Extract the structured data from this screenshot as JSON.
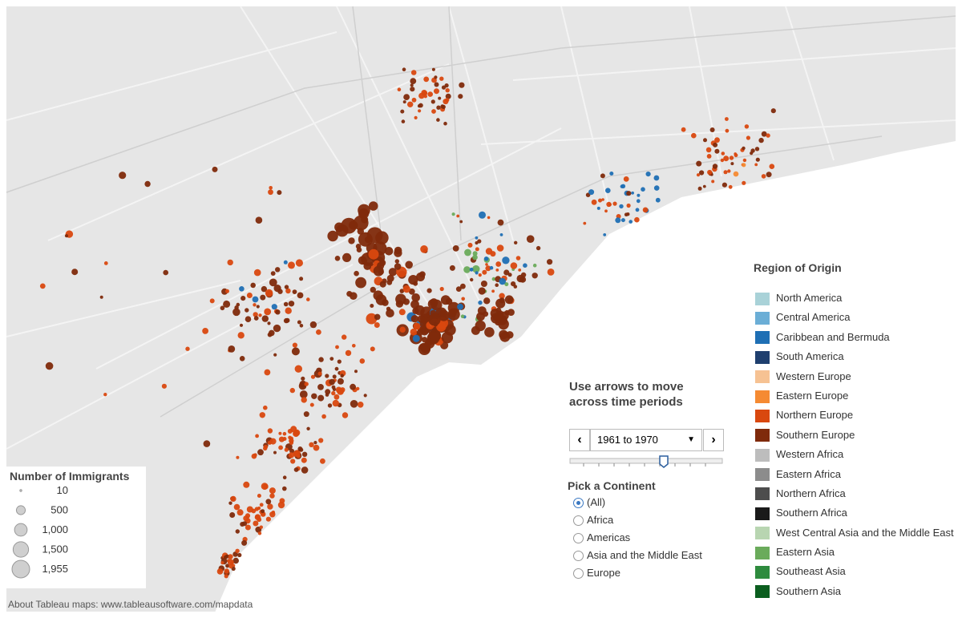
{
  "size_legend": {
    "title": "Number of Immigrants",
    "items": [
      10,
      500,
      {
        "value": 1000,
        "label": "1,000"
      },
      {
        "value": 1500,
        "label": "1,500"
      },
      {
        "value": 1955,
        "label": "1,955"
      }
    ]
  },
  "color_legend": {
    "title": "Region of Origin",
    "items": [
      {
        "name": "North America",
        "color": "#a9d2d8"
      },
      {
        "name": "Central America",
        "color": "#6baed6"
      },
      {
        "name": "Caribbean and Bermuda",
        "color": "#1f6fb4"
      },
      {
        "name": "South America",
        "color": "#1f3f6e"
      },
      {
        "name": "Western Europe",
        "color": "#f6c293"
      },
      {
        "name": "Eastern Europe",
        "color": "#f58a32"
      },
      {
        "name": "Northern Europe",
        "color": "#d9480f"
      },
      {
        "name": "Southern Europe",
        "color": "#7f2a0b"
      },
      {
        "name": "Western Africa",
        "color": "#bdbdbd"
      },
      {
        "name": "Eastern Africa",
        "color": "#8c8c8c"
      },
      {
        "name": "Northern Africa",
        "color": "#4d4d4d"
      },
      {
        "name": "Southern Africa",
        "color": "#1a1a1a"
      },
      {
        "name": "West Central Asia and the Middle East",
        "color": "#b8d5b1"
      },
      {
        "name": "Eastern Asia",
        "color": "#6aab5b"
      },
      {
        "name": "Southeast Asia",
        "color": "#2e8b3e"
      },
      {
        "name": "Southern Asia",
        "color": "#0b5e1f"
      }
    ]
  },
  "time_control": {
    "instruction": "Use arrows to move across time periods",
    "selected": "1961 to 1970"
  },
  "continent_filter": {
    "title": "Pick a Continent",
    "options": [
      "(All)",
      "Africa",
      "Americas",
      "Asia and the Middle East",
      "Europe"
    ],
    "selected": 0
  },
  "attribution": "About Tableau maps: www.tableausoftware.com/mapdata"
}
